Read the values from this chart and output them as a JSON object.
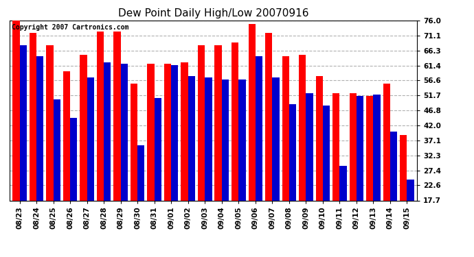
{
  "title": "Dew Point Daily High/Low 20070916",
  "copyright": "Copyright 2007 Cartronics.com",
  "dates": [
    "08/23",
    "08/24",
    "08/25",
    "08/26",
    "08/27",
    "08/28",
    "08/29",
    "08/30",
    "08/31",
    "09/01",
    "09/02",
    "09/03",
    "09/04",
    "09/05",
    "09/06",
    "09/07",
    "09/08",
    "09/09",
    "09/10",
    "09/11",
    "09/12",
    "09/13",
    "09/14",
    "09/15"
  ],
  "highs": [
    76.0,
    72.0,
    68.0,
    59.5,
    65.0,
    72.5,
    72.5,
    55.5,
    62.0,
    62.0,
    62.5,
    68.0,
    68.0,
    69.0,
    75.0,
    72.0,
    64.5,
    65.0,
    58.0,
    52.5,
    52.5,
    51.5,
    55.5,
    39.0
  ],
  "lows": [
    68.0,
    64.5,
    50.5,
    44.5,
    57.5,
    62.5,
    62.0,
    35.5,
    51.0,
    61.5,
    58.0,
    57.5,
    57.0,
    57.0,
    64.5,
    57.5,
    49.0,
    52.5,
    48.5,
    29.0,
    51.5,
    52.0,
    40.0,
    24.5
  ],
  "yticks": [
    17.7,
    22.6,
    27.4,
    32.3,
    37.1,
    42.0,
    46.8,
    51.7,
    56.6,
    61.4,
    66.3,
    71.1,
    76.0
  ],
  "ymin": 17.7,
  "ymax": 76.0,
  "bar_width": 0.42,
  "high_color": "#ff0000",
  "low_color": "#0000cc",
  "bg_color": "#ffffff",
  "grid_color": "#b0b0b0",
  "title_fontsize": 11,
  "copyright_fontsize": 7,
  "tick_fontsize": 7.5
}
